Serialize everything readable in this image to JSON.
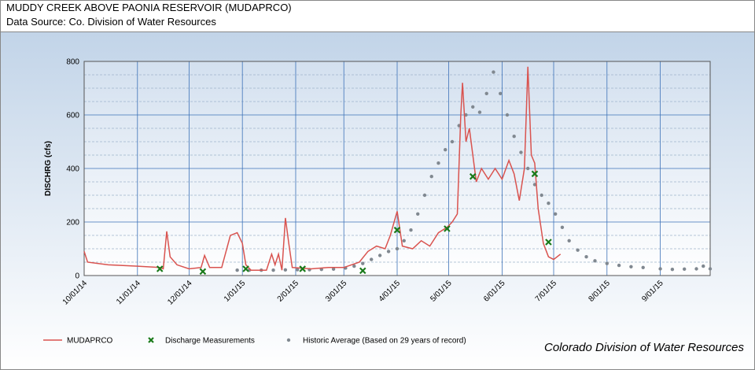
{
  "chart_data": {
    "type": "line",
    "title": "MUDDY CREEK ABOVE PAONIA RESERVOIR (MUDAPRCO)",
    "subtitle": "Data Source: Co. Division of Water Resources",
    "y_label": "DISCHRG (cfs)",
    "credit": "Colorado Division of Water Resources",
    "xlim": [
      "2014-10-01",
      "2015-09-30"
    ],
    "xticks": [
      {
        "value": "2014-10-01",
        "label": "10/01/14"
      },
      {
        "value": "2014-11-01",
        "label": "11/01/14"
      },
      {
        "value": "2014-12-01",
        "label": "12/01/14"
      },
      {
        "value": "2015-01-01",
        "label": "1/01/15"
      },
      {
        "value": "2015-02-01",
        "label": "2/01/15"
      },
      {
        "value": "2015-03-01",
        "label": "3/01/15"
      },
      {
        "value": "2015-04-01",
        "label": "4/01/15"
      },
      {
        "value": "2015-05-01",
        "label": "5/01/15"
      },
      {
        "value": "2015-06-01",
        "label": "6/01/15"
      },
      {
        "value": "2015-07-01",
        "label": "7/01/15"
      },
      {
        "value": "2015-08-01",
        "label": "8/01/15"
      },
      {
        "value": "2015-09-01",
        "label": "9/01/15"
      }
    ],
    "ylim": [
      0,
      800
    ],
    "yticks": [
      0,
      200,
      400,
      600,
      800
    ],
    "yminorticks": [
      50,
      100,
      150,
      250,
      300,
      350,
      450,
      500,
      550,
      650,
      700,
      750
    ],
    "grid": true,
    "legend": "bottom",
    "series": [
      {
        "name": "MUDAPRCO",
        "color": "#d9534f",
        "style": "line",
        "x": [
          "2014-10-01",
          "2014-10-03",
          "2014-10-15",
          "2014-11-01",
          "2014-11-14",
          "2014-11-16",
          "2014-11-18",
          "2014-11-20",
          "2014-11-24",
          "2014-12-01",
          "2014-12-08",
          "2014-12-10",
          "2014-12-13",
          "2014-12-20",
          "2014-12-25",
          "2014-12-29",
          "2015-01-01",
          "2015-01-03",
          "2015-01-06",
          "2015-01-15",
          "2015-01-18",
          "2015-01-20",
          "2015-01-22",
          "2015-01-24",
          "2015-01-26",
          "2015-01-28",
          "2015-01-30",
          "2015-02-10",
          "2015-02-20",
          "2015-03-01",
          "2015-03-10",
          "2015-03-15",
          "2015-03-20",
          "2015-03-25",
          "2015-03-28",
          "2015-04-01",
          "2015-04-04",
          "2015-04-10",
          "2015-04-15",
          "2015-04-20",
          "2015-04-25",
          "2015-04-30",
          "2015-05-03",
          "2015-05-06",
          "2015-05-08",
          "2015-05-09",
          "2015-05-11",
          "2015-05-13",
          "2015-05-15",
          "2015-05-17",
          "2015-05-20",
          "2015-05-24",
          "2015-05-28",
          "2015-06-01",
          "2015-06-05",
          "2015-06-08",
          "2015-06-11",
          "2015-06-14",
          "2015-06-16",
          "2015-06-18",
          "2015-06-20",
          "2015-06-22",
          "2015-06-25",
          "2015-06-28",
          "2015-07-01",
          "2015-07-05"
        ],
        "values": [
          90,
          50,
          40,
          35,
          30,
          25,
          165,
          70,
          40,
          25,
          30,
          75,
          30,
          30,
          150,
          160,
          120,
          40,
          20,
          20,
          80,
          40,
          80,
          20,
          215,
          120,
          30,
          25,
          30,
          30,
          50,
          90,
          110,
          100,
          150,
          240,
          110,
          100,
          130,
          110,
          160,
          180,
          200,
          230,
          600,
          720,
          500,
          550,
          450,
          350,
          400,
          360,
          400,
          360,
          430,
          380,
          280,
          400,
          780,
          450,
          420,
          250,
          120,
          70,
          60,
          80
        ]
      },
      {
        "name": "Discharge Measurements",
        "color": "#1a7a1a",
        "style": "x",
        "x": [
          "2014-11-14",
          "2014-12-09",
          "2015-01-03",
          "2015-02-05",
          "2015-03-12",
          "2015-04-01",
          "2015-04-30",
          "2015-05-15",
          "2015-06-20",
          "2015-06-28"
        ],
        "values": [
          25,
          15,
          25,
          25,
          18,
          170,
          175,
          370,
          380,
          125
        ]
      },
      {
        "name": "Historic Average (Based on 29 years of record)",
        "color": "#808890",
        "style": "dot",
        "x": [
          "2014-12-29",
          "2015-01-05",
          "2015-01-12",
          "2015-01-19",
          "2015-01-26",
          "2015-02-02",
          "2015-02-09",
          "2015-02-16",
          "2015-02-23",
          "2015-03-02",
          "2015-03-07",
          "2015-03-12",
          "2015-03-17",
          "2015-03-22",
          "2015-03-27",
          "2015-04-01",
          "2015-04-05",
          "2015-04-09",
          "2015-04-13",
          "2015-04-17",
          "2015-04-21",
          "2015-04-25",
          "2015-04-29",
          "2015-05-03",
          "2015-05-07",
          "2015-05-11",
          "2015-05-15",
          "2015-05-19",
          "2015-05-23",
          "2015-05-27",
          "2015-05-31",
          "2015-06-04",
          "2015-06-08",
          "2015-06-12",
          "2015-06-16",
          "2015-06-20",
          "2015-06-24",
          "2015-06-28",
          "2015-07-02",
          "2015-07-06",
          "2015-07-10",
          "2015-07-15",
          "2015-07-20",
          "2015-07-25",
          "2015-08-01",
          "2015-08-08",
          "2015-08-15",
          "2015-08-22",
          "2015-09-01",
          "2015-09-08",
          "2015-09-15",
          "2015-09-22",
          "2015-09-26",
          "2015-09-30"
        ],
        "values": [
          20,
          20,
          20,
          20,
          21,
          22,
          22,
          23,
          24,
          28,
          35,
          45,
          60,
          75,
          90,
          100,
          130,
          170,
          230,
          300,
          370,
          420,
          470,
          500,
          560,
          600,
          630,
          610,
          680,
          760,
          680,
          600,
          520,
          460,
          400,
          340,
          300,
          270,
          230,
          180,
          130,
          95,
          70,
          55,
          45,
          38,
          33,
          30,
          25,
          23,
          24,
          25,
          35,
          25
        ]
      }
    ]
  }
}
